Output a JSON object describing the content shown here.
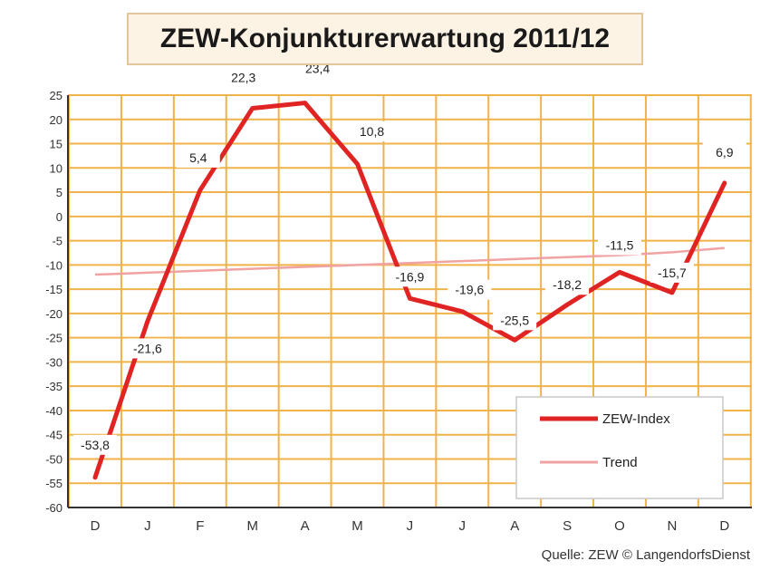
{
  "chart_data": {
    "type": "line",
    "title": "ZEW-Konjunkturerwartung 2011/12",
    "categories": [
      "D",
      "J",
      "F",
      "M",
      "A",
      "M",
      "J",
      "J",
      "A",
      "S",
      "O",
      "N",
      "D"
    ],
    "ylim": [
      -60,
      25
    ],
    "yticks": [
      25,
      20,
      15,
      10,
      5,
      0,
      -5,
      -10,
      -15,
      -20,
      -25,
      -30,
      -35,
      -40,
      -45,
      -50,
      -55,
      -60
    ],
    "grid": true,
    "legend_position": "bottom-right",
    "series": [
      {
        "name": "ZEW-Index",
        "color": "#e02424",
        "values": [
          -53.8,
          -21.6,
          5.4,
          22.3,
          23.4,
          10.8,
          -16.9,
          -19.6,
          -25.5,
          -18.2,
          -11.5,
          -15.7,
          6.9
        ],
        "labels": [
          "-53,8",
          "-21,6",
          "5,4",
          "22,3",
          "23,4",
          "10,8",
          "-16,9",
          "-19,6",
          "-25,5",
          "-18,2",
          "-11,5",
          "-15,7",
          "6,9"
        ]
      },
      {
        "name": "Trend",
        "color": "#f1a3a3",
        "values": [
          -12,
          -11.6,
          -11.2,
          -10.8,
          -10.4,
          -10,
          -9.6,
          -9.2,
          -8.8,
          -8.4,
          -8,
          -7.4,
          -6.5
        ]
      }
    ],
    "source": "Quelle: ZEW © LangendorfsDienst"
  },
  "colors": {
    "grid": "#f0b24a",
    "axis": "#333333",
    "title_bg": "#fdf3e4",
    "title_border": "#e2c79c"
  }
}
